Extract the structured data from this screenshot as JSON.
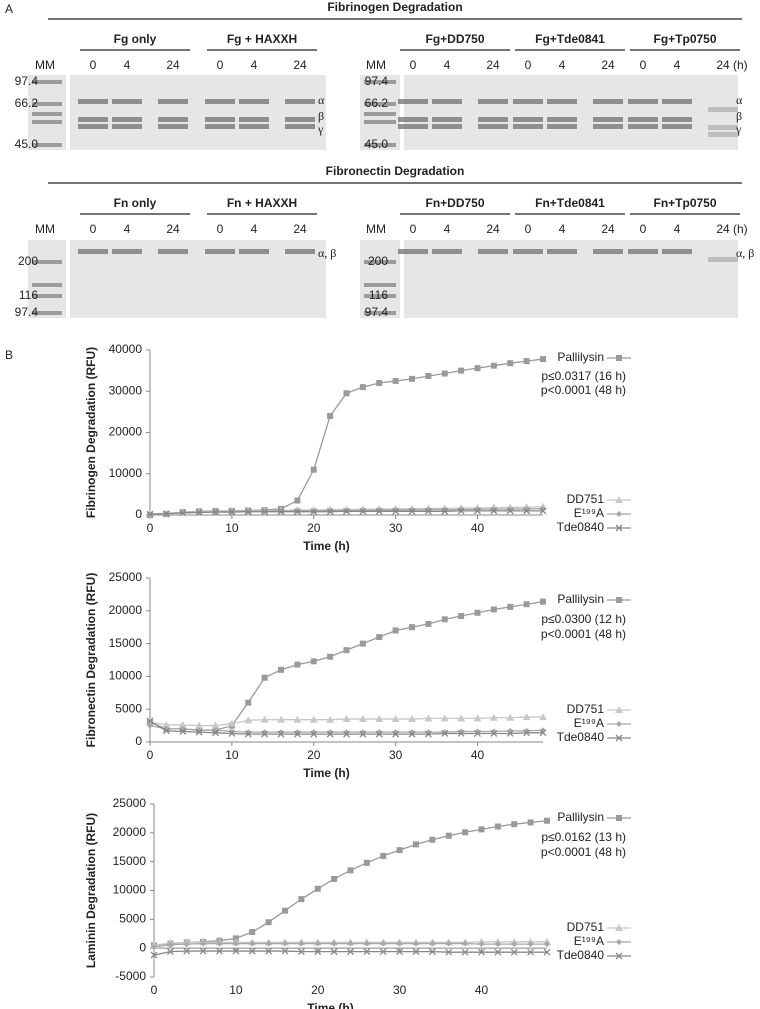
{
  "panel_a": {
    "label": "A",
    "time_labels": [
      "0",
      "4",
      "24"
    ],
    "time_unit": "(h)",
    "ladder": "MM",
    "gels": [
      {
        "title": "Fibrinogen Degradation",
        "groups": [
          "Fg only",
          "Fg + HAXXH",
          "Fg+DD750",
          "Fg+Tde0841",
          "Fg+Tp0750"
        ],
        "markers": [
          "97.4",
          "66.2",
          "45.0"
        ],
        "chains": [
          "α",
          "β",
          "γ"
        ]
      },
      {
        "title": "Fibronectin Degradation",
        "groups": [
          "Fn only",
          "Fn + HAXXH",
          "Fn+DD750",
          "Fn+Tde0841",
          "Fn+Tp0750"
        ],
        "markers": [
          "200",
          "116",
          "97.4"
        ],
        "chains": [
          "α, β"
        ]
      }
    ]
  },
  "panel_b": {
    "label": "B"
  },
  "chart_data": [
    {
      "type": "line",
      "y_label": "Fibrinogen Degradation (RFU)",
      "x_label": "Time (h)",
      "xlim": [
        0,
        48
      ],
      "xticks": [
        0,
        10,
        20,
        30,
        40
      ],
      "ylim": [
        0,
        40000
      ],
      "yticks": [
        0,
        10000,
        20000,
        30000,
        40000
      ],
      "annotations": [
        "p≤0.0317 (16 h)",
        "p<0.0001 (48 h)"
      ],
      "x": [
        0,
        2,
        4,
        6,
        8,
        10,
        12,
        14,
        16,
        18,
        20,
        22,
        24,
        26,
        28,
        30,
        32,
        34,
        36,
        38,
        40,
        42,
        44,
        46,
        48
      ],
      "series": [
        {
          "name": "Pallilysin",
          "color": "#9a9a9a",
          "marker": "square",
          "values": [
            0,
            200,
            700,
            900,
            1000,
            1000,
            1100,
            1200,
            1500,
            3500,
            11000,
            24000,
            29500,
            31000,
            32000,
            32500,
            33000,
            33700,
            34300,
            35000,
            35600,
            36200,
            36800,
            37300,
            37800
          ]
        },
        {
          "name": "DD751",
          "color": "#c8c8c8",
          "marker": "triangle",
          "values": [
            200,
            400,
            700,
            800,
            900,
            1000,
            1000,
            1100,
            1100,
            1200,
            1200,
            1300,
            1300,
            1400,
            1400,
            1500,
            1500,
            1600,
            1600,
            1700,
            1700,
            1800,
            1800,
            1900,
            2000
          ]
        },
        {
          "name": "E¹⁹⁹A",
          "color": "#a8a8a8",
          "marker": "diamond",
          "values": [
            200,
            300,
            600,
            700,
            800,
            900,
            900,
            900,
            1000,
            1000,
            1000,
            1100,
            1100,
            1100,
            1200,
            1200,
            1200,
            1300,
            1300,
            1300,
            1400,
            1400,
            1400,
            1500,
            1500
          ]
        },
        {
          "name": "Tde0840",
          "color": "#888888",
          "marker": "cross",
          "values": [
            200,
            300,
            500,
            600,
            700,
            700,
            800,
            800,
            800,
            800,
            800,
            800,
            900,
            900,
            900,
            900,
            900,
            900,
            900,
            1000,
            1000,
            1000,
            1000,
            1000,
            1000
          ]
        }
      ]
    },
    {
      "type": "line",
      "y_label": "Fibronectin Degradation (RFU)",
      "x_label": "Time (h)",
      "xlim": [
        0,
        48
      ],
      "xticks": [
        0,
        10,
        20,
        30,
        40
      ],
      "ylim": [
        0,
        25000
      ],
      "yticks": [
        0,
        5000,
        10000,
        15000,
        20000,
        25000
      ],
      "annotations": [
        "p≤0.0300 (12 h)",
        "p<0.0001 (48 h)"
      ],
      "x": [
        0,
        2,
        4,
        6,
        8,
        10,
        12,
        14,
        16,
        18,
        20,
        22,
        24,
        26,
        28,
        30,
        32,
        34,
        36,
        38,
        40,
        42,
        44,
        46,
        48
      ],
      "series": [
        {
          "name": "Pallilysin",
          "color": "#9a9a9a",
          "marker": "square",
          "values": [
            3000,
            2000,
            2000,
            1800,
            1800,
            2500,
            6000,
            9800,
            11000,
            11800,
            12300,
            13000,
            14000,
            15000,
            16000,
            17000,
            17500,
            18000,
            18700,
            19200,
            19700,
            20200,
            20600,
            21000,
            21400
          ]
        },
        {
          "name": "DD751",
          "color": "#c8c8c8",
          "marker": "triangle",
          "values": [
            3000,
            2600,
            2600,
            2500,
            2500,
            2800,
            3300,
            3400,
            3400,
            3400,
            3400,
            3400,
            3500,
            3500,
            3500,
            3500,
            3500,
            3600,
            3600,
            3600,
            3600,
            3700,
            3700,
            3800,
            3800
          ]
        },
        {
          "name": "E¹⁹⁹A",
          "color": "#a8a8a8",
          "marker": "diamond",
          "values": [
            2500,
            2000,
            2000,
            1800,
            1800,
            1600,
            1500,
            1500,
            1500,
            1500,
            1500,
            1500,
            1500,
            1500,
            1500,
            1500,
            1500,
            1500,
            1500,
            1600,
            1600,
            1600,
            1700,
            1700,
            1800
          ]
        },
        {
          "name": "Tde0840",
          "color": "#888888",
          "marker": "cross",
          "values": [
            3200,
            1700,
            1600,
            1500,
            1400,
            1300,
            1200,
            1200,
            1200,
            1200,
            1200,
            1200,
            1200,
            1200,
            1200,
            1200,
            1200,
            1200,
            1300,
            1300,
            1300,
            1300,
            1300,
            1400,
            1400
          ]
        }
      ]
    },
    {
      "type": "line",
      "y_label": "Laminin Degradation (RFU)",
      "x_label": "Time (h)",
      "xlim": [
        0,
        48
      ],
      "xticks": [
        0,
        10,
        20,
        30,
        40
      ],
      "ylim": [
        -5000,
        25000
      ],
      "yticks": [
        -5000,
        0,
        5000,
        10000,
        15000,
        20000,
        25000
      ],
      "annotations": [
        "p≤0.0162 (13 h)",
        "p<0.0001 (48 h)"
      ],
      "x": [
        0,
        2,
        4,
        6,
        8,
        10,
        12,
        14,
        16,
        18,
        20,
        22,
        24,
        26,
        28,
        30,
        32,
        34,
        36,
        38,
        40,
        42,
        44,
        46,
        48
      ],
      "series": [
        {
          "name": "Pallilysin",
          "color": "#9a9a9a",
          "marker": "square",
          "values": [
            500,
            800,
            1000,
            1100,
            1300,
            1700,
            2800,
            4500,
            6500,
            8500,
            10300,
            12000,
            13500,
            14800,
            16000,
            17000,
            18000,
            18800,
            19500,
            20100,
            20600,
            21100,
            21500,
            21800,
            22100
          ]
        },
        {
          "name": "DD751",
          "color": "#c8c8c8",
          "marker": "triangle",
          "values": [
            500,
            900,
            1000,
            1000,
            1000,
            1000,
            1000,
            1000,
            1000,
            1000,
            1000,
            1000,
            1000,
            1000,
            1000,
            1000,
            1000,
            1000,
            1000,
            1000,
            1100,
            1100,
            1100,
            1100,
            1100
          ]
        },
        {
          "name": "E¹⁹⁹A",
          "color": "#a8a8a8",
          "marker": "diamond",
          "values": [
            200,
            600,
            700,
            800,
            800,
            800,
            800,
            800,
            800,
            800,
            800,
            800,
            800,
            800,
            800,
            800,
            800,
            800,
            800,
            800,
            700,
            700,
            700,
            700,
            700
          ]
        },
        {
          "name": "Tde0840",
          "color": "#888888",
          "marker": "cross",
          "values": [
            -1200,
            -600,
            -500,
            -500,
            -500,
            -500,
            -500,
            -500,
            -500,
            -600,
            -600,
            -600,
            -600,
            -600,
            -600,
            -600,
            -600,
            -600,
            -700,
            -700,
            -700,
            -700,
            -700,
            -700,
            -700
          ]
        }
      ]
    }
  ]
}
